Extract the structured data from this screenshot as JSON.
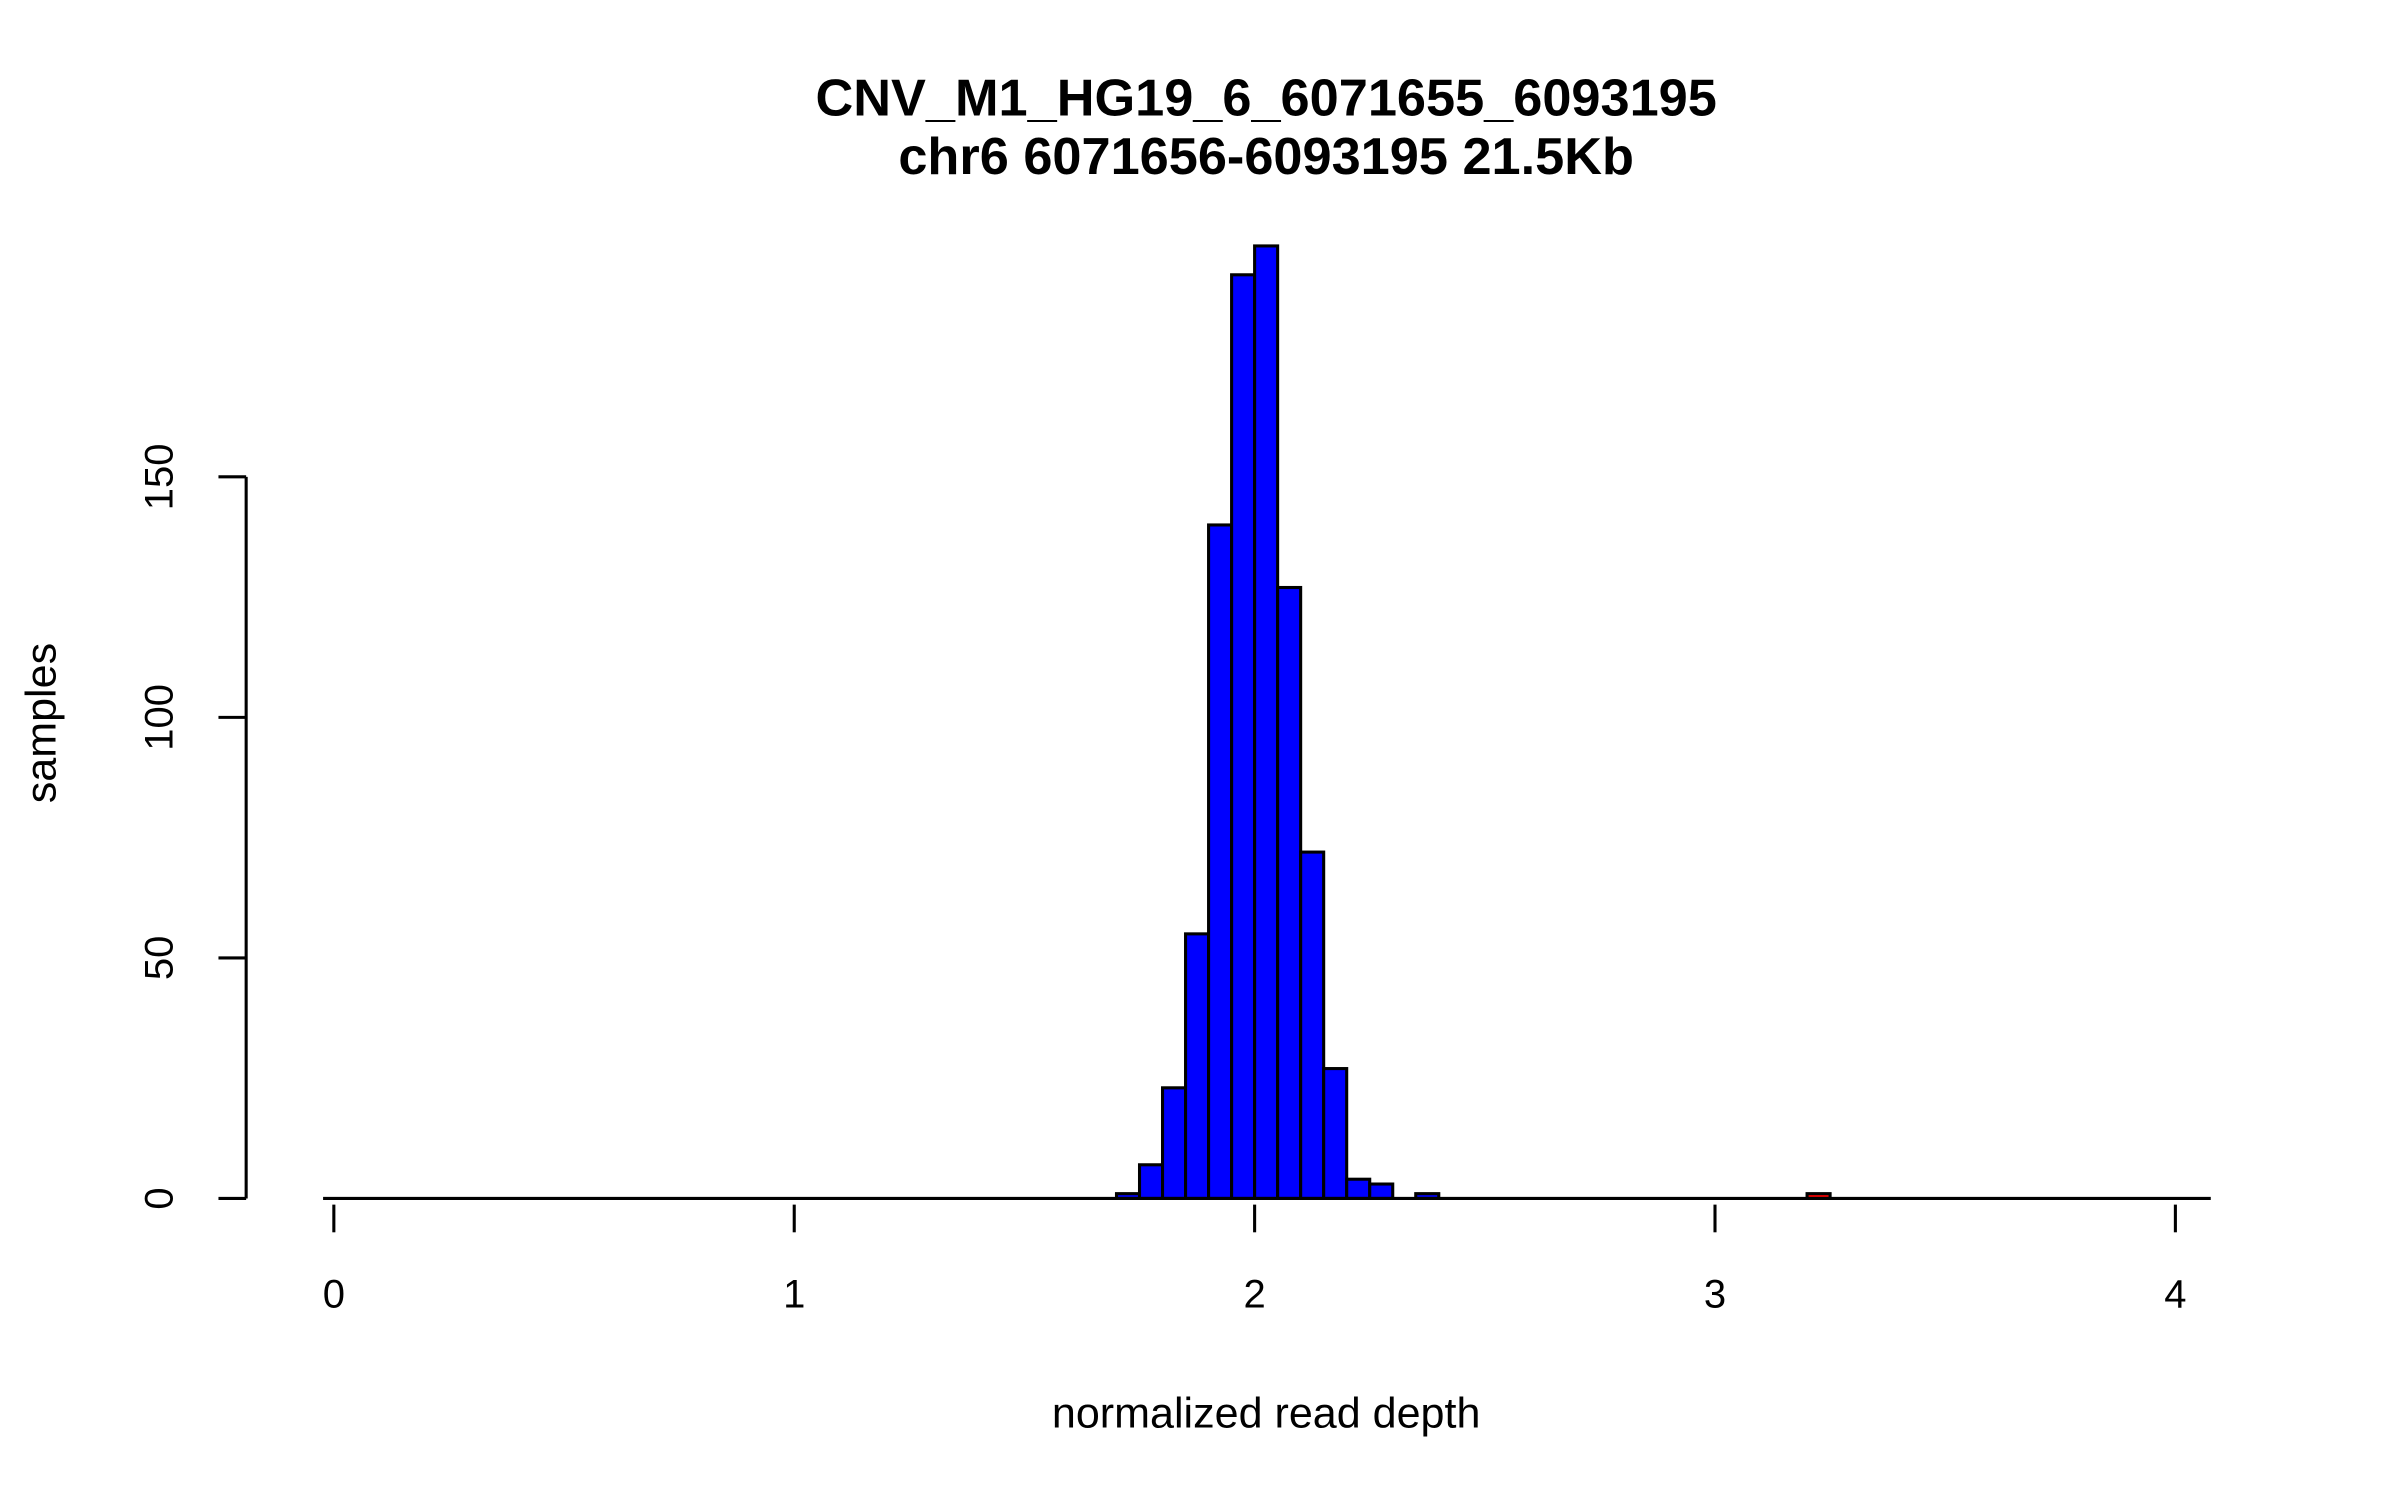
{
  "chart_data": {
    "type": "bar",
    "title": "CNV_M1_HG19_6_6071655_6093195",
    "subtitle": "chr6 6071656-6093195 21.5Kb",
    "xlabel": "normalized read depth",
    "ylabel": "samples",
    "xlim": [
      0,
      4
    ],
    "ylim": [
      0,
      200
    ],
    "xticks": [
      "0",
      "1",
      "2",
      "3",
      "4"
    ],
    "yticks": [
      "0",
      "50",
      "100",
      "150"
    ],
    "bin_width": 0.05,
    "colors": {
      "bars": "#0000FF",
      "highlight": "#FF0000",
      "outline": "#000000"
    },
    "bins": [
      {
        "start": 1.7,
        "count": 1,
        "highlight": false
      },
      {
        "start": 1.75,
        "count": 7,
        "highlight": false
      },
      {
        "start": 1.8,
        "count": 23,
        "highlight": false
      },
      {
        "start": 1.85,
        "count": 55,
        "highlight": false
      },
      {
        "start": 1.9,
        "count": 140,
        "highlight": false
      },
      {
        "start": 1.95,
        "count": 192,
        "highlight": false
      },
      {
        "start": 2.0,
        "count": 198,
        "highlight": false
      },
      {
        "start": 2.05,
        "count": 127,
        "highlight": false
      },
      {
        "start": 2.1,
        "count": 72,
        "highlight": false
      },
      {
        "start": 2.15,
        "count": 27,
        "highlight": false
      },
      {
        "start": 2.2,
        "count": 4,
        "highlight": false
      },
      {
        "start": 2.25,
        "count": 3,
        "highlight": false
      },
      {
        "start": 2.35,
        "count": 1,
        "highlight": false
      },
      {
        "start": 3.2,
        "count": 1,
        "highlight": true
      }
    ]
  }
}
